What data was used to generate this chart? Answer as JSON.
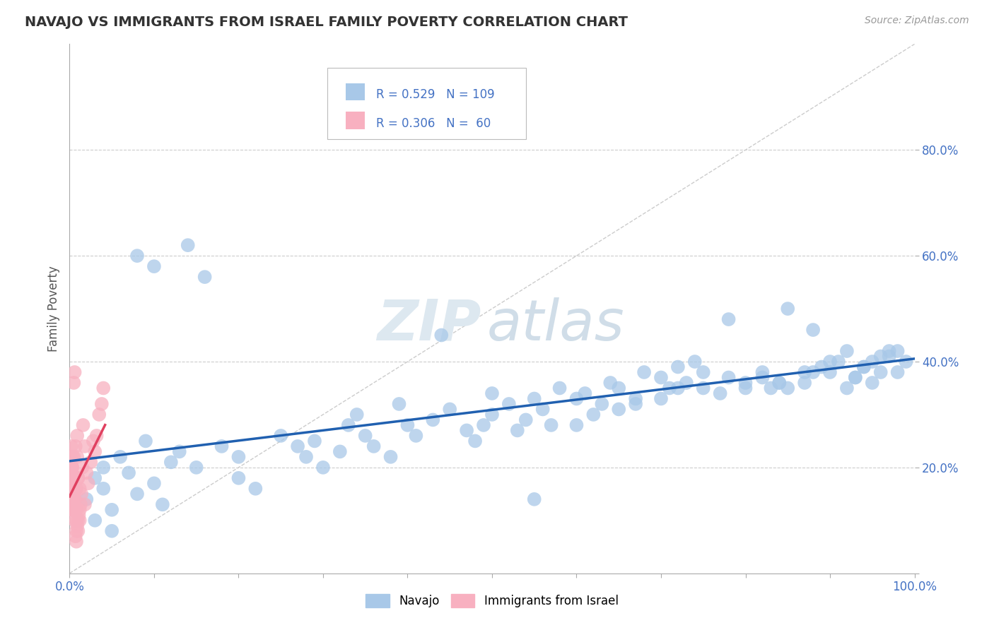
{
  "title": "NAVAJO VS IMMIGRANTS FROM ISRAEL FAMILY POVERTY CORRELATION CHART",
  "source": "Source: ZipAtlas.com",
  "ylabel": "Family Poverty",
  "xlim": [
    0,
    1.0
  ],
  "ylim": [
    0,
    1.0
  ],
  "navajo_R": 0.529,
  "navajo_N": 109,
  "israel_R": 0.306,
  "israel_N": 60,
  "navajo_color": "#a8c8e8",
  "navajo_line_color": "#2060b0",
  "israel_color": "#f8b0c0",
  "israel_line_color": "#e04060",
  "diagonal_color": "#cccccc",
  "navajo_x": [
    0.02,
    0.03,
    0.04,
    0.05,
    0.06,
    0.04,
    0.03,
    0.05,
    0.07,
    0.08,
    0.1,
    0.12,
    0.09,
    0.11,
    0.13,
    0.15,
    0.14,
    0.16,
    0.18,
    0.2,
    0.22,
    0.08,
    0.1,
    0.2,
    0.25,
    0.27,
    0.28,
    0.3,
    0.29,
    0.32,
    0.33,
    0.35,
    0.34,
    0.36,
    0.38,
    0.4,
    0.39,
    0.41,
    0.43,
    0.45,
    0.44,
    0.47,
    0.48,
    0.5,
    0.49,
    0.52,
    0.54,
    0.53,
    0.55,
    0.5,
    0.56,
    0.58,
    0.57,
    0.6,
    0.62,
    0.61,
    0.63,
    0.65,
    0.64,
    0.67,
    0.68,
    0.7,
    0.72,
    0.71,
    0.73,
    0.75,
    0.74,
    0.77,
    0.78,
    0.8,
    0.82,
    0.84,
    0.85,
    0.87,
    0.88,
    0.9,
    0.91,
    0.92,
    0.93,
    0.94,
    0.95,
    0.96,
    0.97,
    0.98,
    0.99,
    0.92,
    0.93,
    0.94,
    0.95,
    0.96,
    0.97,
    0.98,
    0.85,
    0.87,
    0.88,
    0.89,
    0.9,
    0.75,
    0.78,
    0.8,
    0.82,
    0.83,
    0.84,
    0.7,
    0.72,
    0.65,
    0.67,
    0.6,
    0.55
  ],
  "navajo_y": [
    0.14,
    0.18,
    0.2,
    0.12,
    0.22,
    0.16,
    0.1,
    0.08,
    0.19,
    0.15,
    0.17,
    0.21,
    0.25,
    0.13,
    0.23,
    0.2,
    0.62,
    0.56,
    0.24,
    0.18,
    0.16,
    0.6,
    0.58,
    0.22,
    0.26,
    0.24,
    0.22,
    0.2,
    0.25,
    0.23,
    0.28,
    0.26,
    0.3,
    0.24,
    0.22,
    0.28,
    0.32,
    0.26,
    0.29,
    0.31,
    0.45,
    0.27,
    0.25,
    0.3,
    0.28,
    0.32,
    0.29,
    0.27,
    0.33,
    0.34,
    0.31,
    0.35,
    0.28,
    0.33,
    0.3,
    0.34,
    0.32,
    0.35,
    0.36,
    0.33,
    0.38,
    0.37,
    0.39,
    0.35,
    0.36,
    0.38,
    0.4,
    0.34,
    0.48,
    0.35,
    0.37,
    0.36,
    0.5,
    0.38,
    0.46,
    0.38,
    0.4,
    0.42,
    0.37,
    0.39,
    0.4,
    0.41,
    0.42,
    0.38,
    0.4,
    0.35,
    0.37,
    0.39,
    0.36,
    0.38,
    0.41,
    0.42,
    0.35,
    0.36,
    0.38,
    0.39,
    0.4,
    0.35,
    0.37,
    0.36,
    0.38,
    0.35,
    0.36,
    0.33,
    0.35,
    0.31,
    0.32,
    0.28,
    0.14
  ],
  "israel_x": [
    0.005,
    0.01,
    0.008,
    0.012,
    0.015,
    0.006,
    0.009,
    0.018,
    0.02,
    0.014,
    0.025,
    0.022,
    0.028,
    0.03,
    0.016,
    0.032,
    0.035,
    0.018,
    0.038,
    0.04,
    0.008,
    0.01,
    0.012,
    0.005,
    0.007,
    0.009,
    0.011,
    0.013,
    0.006,
    0.008,
    0.01,
    0.012,
    0.004,
    0.006,
    0.008,
    0.01,
    0.003,
    0.005,
    0.007,
    0.009,
    0.002,
    0.004,
    0.006,
    0.008,
    0.003,
    0.005,
    0.007,
    0.002,
    0.004,
    0.006,
    0.001,
    0.003,
    0.005,
    0.002,
    0.004,
    0.001,
    0.003,
    0.002,
    0.001,
    0.003
  ],
  "israel_y": [
    0.14,
    0.18,
    0.1,
    0.16,
    0.2,
    0.12,
    0.22,
    0.24,
    0.19,
    0.15,
    0.21,
    0.17,
    0.25,
    0.23,
    0.28,
    0.26,
    0.3,
    0.13,
    0.32,
    0.35,
    0.08,
    0.1,
    0.12,
    0.36,
    0.07,
    0.09,
    0.11,
    0.13,
    0.38,
    0.06,
    0.08,
    0.1,
    0.12,
    0.14,
    0.16,
    0.18,
    0.2,
    0.22,
    0.24,
    0.26,
    0.18,
    0.16,
    0.14,
    0.12,
    0.2,
    0.18,
    0.16,
    0.14,
    0.12,
    0.1,
    0.22,
    0.2,
    0.18,
    0.24,
    0.22,
    0.2,
    0.18,
    0.16,
    0.14,
    0.12
  ]
}
